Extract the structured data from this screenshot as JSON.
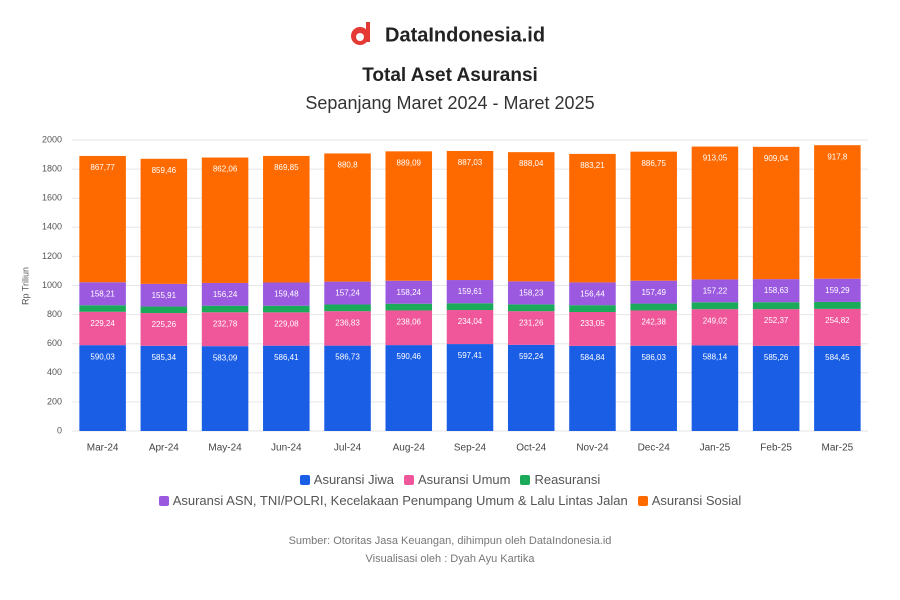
{
  "brand": "DataIndonesia.id",
  "chart_data": {
    "type": "stacked-bar",
    "title": "Total Aset Asuransi",
    "subtitle": "Sepanjang Maret 2024 - Maret 2025",
    "y_label": "Rp Triliun",
    "categories": [
      "Mar-24",
      "Apr-24",
      "May-24",
      "Jun-24",
      "Jul-24",
      "Aug-24",
      "Sep-24",
      "Oct-24",
      "Nov-24",
      "Dec-24",
      "Jan-25",
      "Feb-25",
      "Mar-25"
    ],
    "series": [
      {
        "name": "Asuransi Jiwa",
        "color": "#1a5ee6",
        "values": [
          590.03,
          585.34,
          583.09,
          586.41,
          586.73,
          590.46,
          597.41,
          592.24,
          584.84,
          586.03,
          588.14,
          585.26,
          584.45
        ],
        "value_labels": [
          "590,03",
          "585,34",
          "583,09",
          "586,41",
          "586,73",
          "590,46",
          "597,41",
          "592,24",
          "584,84",
          "586,03",
          "588,14",
          "585,26",
          "584,45"
        ]
      },
      {
        "name": "Asuransi Umum",
        "color": "#f0569a",
        "values": [
          229.24,
          225.26,
          232.78,
          229.08,
          236.83,
          238.06,
          234.04,
          231.26,
          233.05,
          242.38,
          249.02,
          252.37,
          254.82
        ],
        "value_labels": [
          "229,24",
          "225,26",
          "232,78",
          "229,08",
          "236,83",
          "238,06",
          "234,04",
          "231,26",
          "233,05",
          "242,38",
          "249,02",
          "252,37",
          "254,82"
        ]
      },
      {
        "name": "Reasuransi",
        "color": "#1aaa5a",
        "values": [
          45.1,
          44.8,
          45.3,
          45.6,
          46.0,
          46.2,
          46.5,
          46.8,
          47.0,
          47.3,
          47.5,
          47.7,
          48.0
        ]
      },
      {
        "name": "Asuransi ASN, TNI/POLRI, Kecelakaan Penumpang Umum & Lalu Lintas Jalan",
        "color": "#9b59e0",
        "values": [
          158.21,
          155.91,
          156.24,
          159.48,
          157.24,
          158.24,
          159.61,
          158.23,
          156.44,
          157.49,
          157.22,
          158.63,
          159.29
        ],
        "value_labels": [
          "158,21",
          "155,91",
          "156,24",
          "159,48",
          "157,24",
          "158,24",
          "159,61",
          "158,23",
          "156,44",
          "157,49",
          "157,22",
          "158,63",
          "159,29"
        ]
      },
      {
        "name": "Asuransi Sosial",
        "color": "#ff6a00",
        "values": [
          867.77,
          859.46,
          862.06,
          869.85,
          880.8,
          889.09,
          887.03,
          888.04,
          883.21,
          886.75,
          913.05,
          909.04,
          917.8
        ],
        "value_labels": [
          "867,77",
          "859,46",
          "862,06",
          "869,85",
          "880,8",
          "889,09",
          "887,03",
          "888,04",
          "883,21",
          "886,75",
          "913,05",
          "909,04",
          "917,8"
        ]
      }
    ],
    "ylim": [
      0,
      2000
    ],
    "yticks": [
      0,
      200,
      400,
      600,
      800,
      1000,
      1200,
      1400,
      1600,
      1800,
      2000
    ],
    "grid": true,
    "source": "Sumber: Otoritas Jasa Keuangan, dihimpun oleh DataIndonesia.id",
    "credit": "Visualisasi oleh : Dyah Ayu Kartika"
  }
}
